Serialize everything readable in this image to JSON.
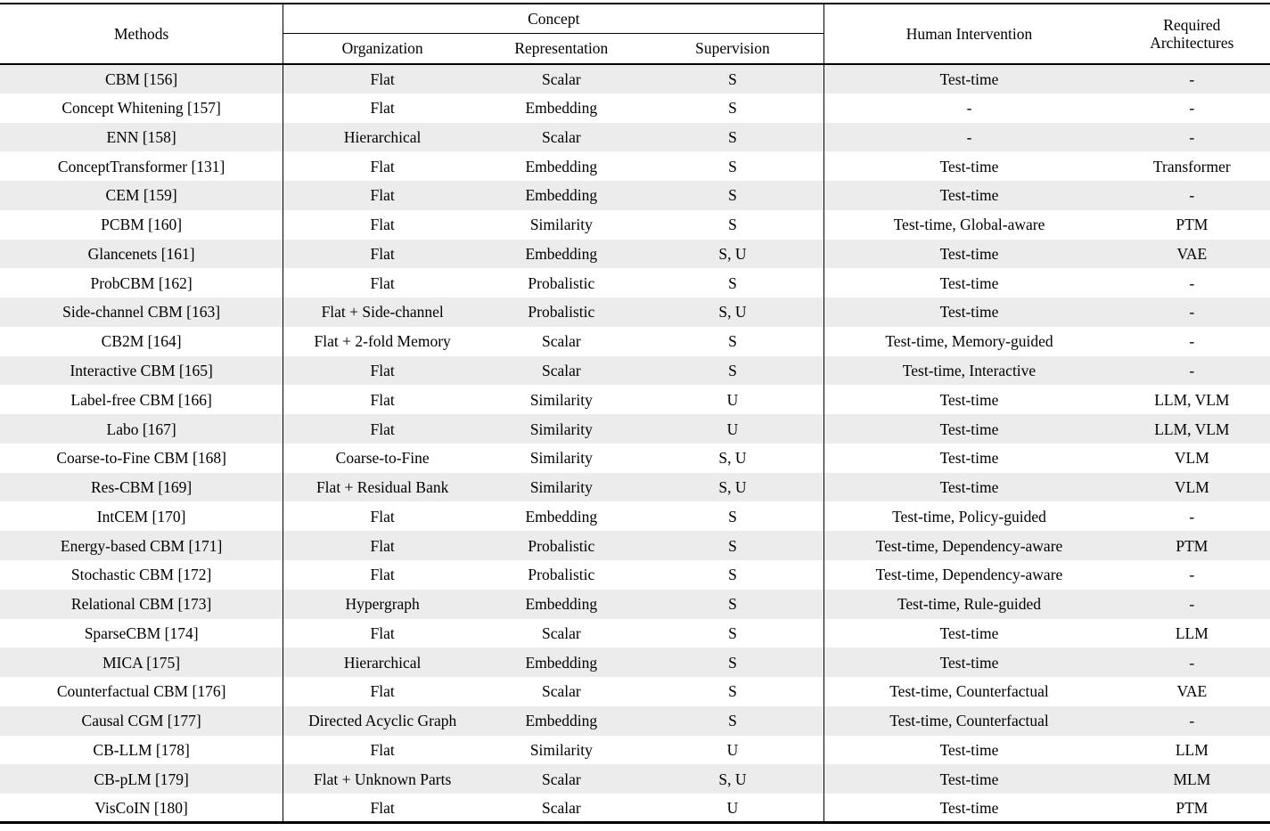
{
  "table": {
    "headers": {
      "methods": "Methods",
      "concept_group": "Concept",
      "organization": "Organization",
      "representation": "Representation",
      "supervision": "Supervision",
      "human_intervention": "Human Intervention",
      "required_architectures": "Required Architectures"
    },
    "colors": {
      "stripe": "#ececec",
      "border": "#000000",
      "background": "#ffffff",
      "text": "#000000"
    },
    "rows": [
      {
        "method": "CBM [156]",
        "organization": "Flat",
        "representation": "Scalar",
        "supervision": "S",
        "human_intervention": "Test-time",
        "required_architectures": "-"
      },
      {
        "method": "Concept Whitening [157]",
        "organization": "Flat",
        "representation": "Embedding",
        "supervision": "S",
        "human_intervention": "-",
        "required_architectures": "-"
      },
      {
        "method": "ENN [158]",
        "organization": "Hierarchical",
        "representation": "Scalar",
        "supervision": "S",
        "human_intervention": "-",
        "required_architectures": "-"
      },
      {
        "method": "ConceptTransformer [131]",
        "organization": "Flat",
        "representation": "Embedding",
        "supervision": "S",
        "human_intervention": "Test-time",
        "required_architectures": "Transformer"
      },
      {
        "method": "CEM [159]",
        "organization": "Flat",
        "representation": "Embedding",
        "supervision": "S",
        "human_intervention": "Test-time",
        "required_architectures": "-"
      },
      {
        "method": "PCBM [160]",
        "organization": "Flat",
        "representation": "Similarity",
        "supervision": "S",
        "human_intervention": "Test-time, Global-aware",
        "required_architectures": "PTM"
      },
      {
        "method": "Glancenets [161]",
        "organization": "Flat",
        "representation": "Embedding",
        "supervision": "S, U",
        "human_intervention": "Test-time",
        "required_architectures": "VAE"
      },
      {
        "method": "ProbCBM [162]",
        "organization": "Flat",
        "representation": "Probalistic",
        "supervision": "S",
        "human_intervention": "Test-time",
        "required_architectures": "-"
      },
      {
        "method": "Side-channel CBM [163]",
        "organization": "Flat + Side-channel",
        "representation": "Probalistic",
        "supervision": "S, U",
        "human_intervention": "Test-time",
        "required_architectures": "-"
      },
      {
        "method": "CB2M [164]",
        "organization": "Flat + 2-fold Memory",
        "representation": "Scalar",
        "supervision": "S",
        "human_intervention": "Test-time, Memory-guided",
        "required_architectures": "-"
      },
      {
        "method": "Interactive CBM [165]",
        "organization": "Flat",
        "representation": "Scalar",
        "supervision": "S",
        "human_intervention": "Test-time, Interactive",
        "required_architectures": "-"
      },
      {
        "method": "Label-free CBM [166]",
        "organization": "Flat",
        "representation": "Similarity",
        "supervision": "U",
        "human_intervention": "Test-time",
        "required_architectures": "LLM, VLM"
      },
      {
        "method": "Labo [167]",
        "organization": "Flat",
        "representation": "Similarity",
        "supervision": "U",
        "human_intervention": "Test-time",
        "required_architectures": "LLM, VLM"
      },
      {
        "method": "Coarse-to-Fine CBM [168]",
        "organization": "Coarse-to-Fine",
        "representation": "Similarity",
        "supervision": "S, U",
        "human_intervention": "Test-time",
        "required_architectures": "VLM"
      },
      {
        "method": "Res-CBM [169]",
        "organization": "Flat + Residual Bank",
        "representation": "Similarity",
        "supervision": "S, U",
        "human_intervention": "Test-time",
        "required_architectures": "VLM"
      },
      {
        "method": "IntCEM [170]",
        "organization": "Flat",
        "representation": "Embedding",
        "supervision": "S",
        "human_intervention": "Test-time, Policy-guided",
        "required_architectures": "-"
      },
      {
        "method": "Energy-based CBM [171]",
        "organization": "Flat",
        "representation": "Probalistic",
        "supervision": "S",
        "human_intervention": "Test-time, Dependency-aware",
        "required_architectures": "PTM"
      },
      {
        "method": "Stochastic CBM [172]",
        "organization": "Flat",
        "representation": "Probalistic",
        "supervision": "S",
        "human_intervention": "Test-time, Dependency-aware",
        "required_architectures": "-"
      },
      {
        "method": "Relational CBM [173]",
        "organization": "Hypergraph",
        "representation": "Embedding",
        "supervision": "S",
        "human_intervention": "Test-time, Rule-guided",
        "required_architectures": "-"
      },
      {
        "method": "SparseCBM [174]",
        "organization": "Flat",
        "representation": "Scalar",
        "supervision": "S",
        "human_intervention": "Test-time",
        "required_architectures": "LLM"
      },
      {
        "method": "MICA [175]",
        "organization": "Hierarchical",
        "representation": "Embedding",
        "supervision": "S",
        "human_intervention": "Test-time",
        "required_architectures": "-"
      },
      {
        "method": "Counterfactual CBM [176]",
        "organization": "Flat",
        "representation": "Scalar",
        "supervision": "S",
        "human_intervention": "Test-time, Counterfactual",
        "required_architectures": "VAE"
      },
      {
        "method": "Causal CGM [177]",
        "organization": "Directed Acyclic Graph",
        "representation": "Embedding",
        "supervision": "S",
        "human_intervention": "Test-time, Counterfactual",
        "required_architectures": "-"
      },
      {
        "method": "CB-LLM [178]",
        "organization": "Flat",
        "representation": "Similarity",
        "supervision": "U",
        "human_intervention": "Test-time",
        "required_architectures": "LLM"
      },
      {
        "method": "CB-pLM [179]",
        "organization": "Flat + Unknown Parts",
        "representation": "Scalar",
        "supervision": "S, U",
        "human_intervention": "Test-time",
        "required_architectures": "MLM"
      },
      {
        "method": "VisCoIN [180]",
        "organization": "Flat",
        "representation": "Scalar",
        "supervision": "U",
        "human_intervention": "Test-time",
        "required_architectures": "PTM"
      }
    ]
  }
}
